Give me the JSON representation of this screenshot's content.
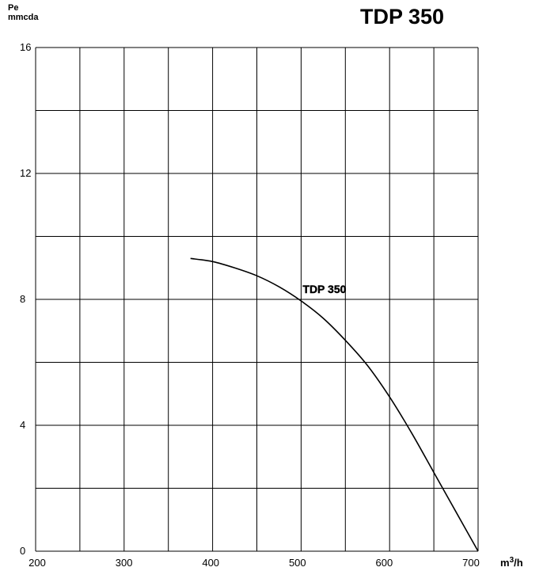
{
  "chart_data": {
    "type": "line",
    "title": "TDP 350",
    "ylabel": [
      "Pe",
      "mmcda"
    ],
    "xlabel": {
      "prefix": "m",
      "superscript": "3",
      "suffix": "/h"
    },
    "xlim": [
      200,
      700
    ],
    "ylim": [
      0,
      16
    ],
    "x_tick_labels": [
      "200",
      "300",
      "400",
      "500",
      "600",
      "700"
    ],
    "y_tick_labels": [
      "0",
      "4",
      "8",
      "12",
      "16"
    ],
    "x_grid_step": 50,
    "y_grid_step": 2,
    "grid": true,
    "series": [
      {
        "name": "TDP 350",
        "color": "#000000",
        "x": [
          375,
          400,
          425,
          450,
          475,
          500,
          525,
          550,
          575,
          600,
          625,
          650,
          675,
          700
        ],
        "y": [
          9.3,
          9.2,
          9.0,
          8.75,
          8.4,
          7.95,
          7.4,
          6.7,
          5.9,
          4.9,
          3.75,
          2.5,
          1.25,
          0.0
        ]
      }
    ]
  }
}
